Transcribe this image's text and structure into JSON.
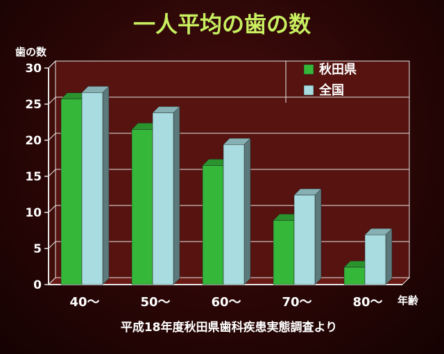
{
  "chart_data": {
    "type": "bar",
    "title": "一人平均の歯の数",
    "ylabel": "歯の数",
    "xlabel": "年齢",
    "source": "平成18年度秋田県歯科疾患実態調査より",
    "categories": [
      "40～",
      "50～",
      "60～",
      "70～",
      "80～"
    ],
    "series": [
      {
        "name": "秋田県",
        "values": [
          25.7,
          21.5,
          16.5,
          8.9,
          2.4
        ]
      },
      {
        "name": "全国",
        "values": [
          26.6,
          23.8,
          19.4,
          12.4,
          6.9
        ]
      }
    ],
    "ylim": [
      0,
      30
    ],
    "yticks": [
      0,
      5,
      10,
      15,
      20,
      25,
      30
    ],
    "grid": true,
    "legend_position": "top-right",
    "colors": {
      "title": "#c8f060",
      "series_akita": "#35b83a",
      "series_national": "#a8dce0",
      "plot_bg": "#56130f",
      "axis": "#e8e8e8",
      "text": "#ffffff"
    }
  }
}
